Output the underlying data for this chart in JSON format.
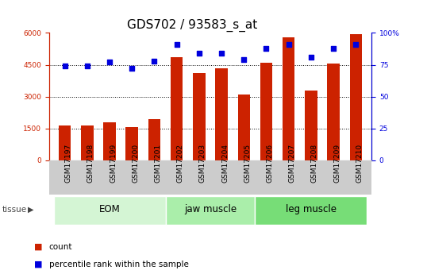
{
  "title": "GDS702 / 93583_s_at",
  "samples": [
    "GSM17197",
    "GSM17198",
    "GSM17199",
    "GSM17200",
    "GSM17201",
    "GSM17202",
    "GSM17203",
    "GSM17204",
    "GSM17205",
    "GSM17206",
    "GSM17207",
    "GSM17208",
    "GSM17209",
    "GSM17210"
  ],
  "counts": [
    1650,
    1650,
    1800,
    1550,
    1950,
    4850,
    4100,
    4350,
    3100,
    4600,
    5800,
    3300,
    4550,
    5950
  ],
  "percentiles": [
    74,
    74,
    77,
    72,
    78,
    91,
    84,
    84,
    79,
    88,
    91,
    81,
    88,
    91
  ],
  "groups": [
    {
      "label": "EOM",
      "start": 0,
      "end": 5,
      "color": "#d4f5d4"
    },
    {
      "label": "jaw muscle",
      "start": 5,
      "end": 9,
      "color": "#aaeeaa"
    },
    {
      "label": "leg muscle",
      "start": 9,
      "end": 14,
      "color": "#77dd77"
    }
  ],
  "bar_color": "#cc2200",
  "dot_color": "#0000dd",
  "bar_width": 0.55,
  "ylim_left": [
    0,
    6000
  ],
  "ylim_right": [
    0,
    100
  ],
  "yticks_left": [
    0,
    1500,
    3000,
    4500,
    6000
  ],
  "yticks_right": [
    0,
    25,
    50,
    75,
    100
  ],
  "left_axis_color": "#cc2200",
  "right_axis_color": "#0000dd",
  "legend_count_label": "count",
  "legend_pct_label": "percentile rank within the sample",
  "title_fontsize": 11,
  "tick_fontsize": 6.5,
  "group_fontsize": 8.5,
  "legend_fontsize": 7.5
}
